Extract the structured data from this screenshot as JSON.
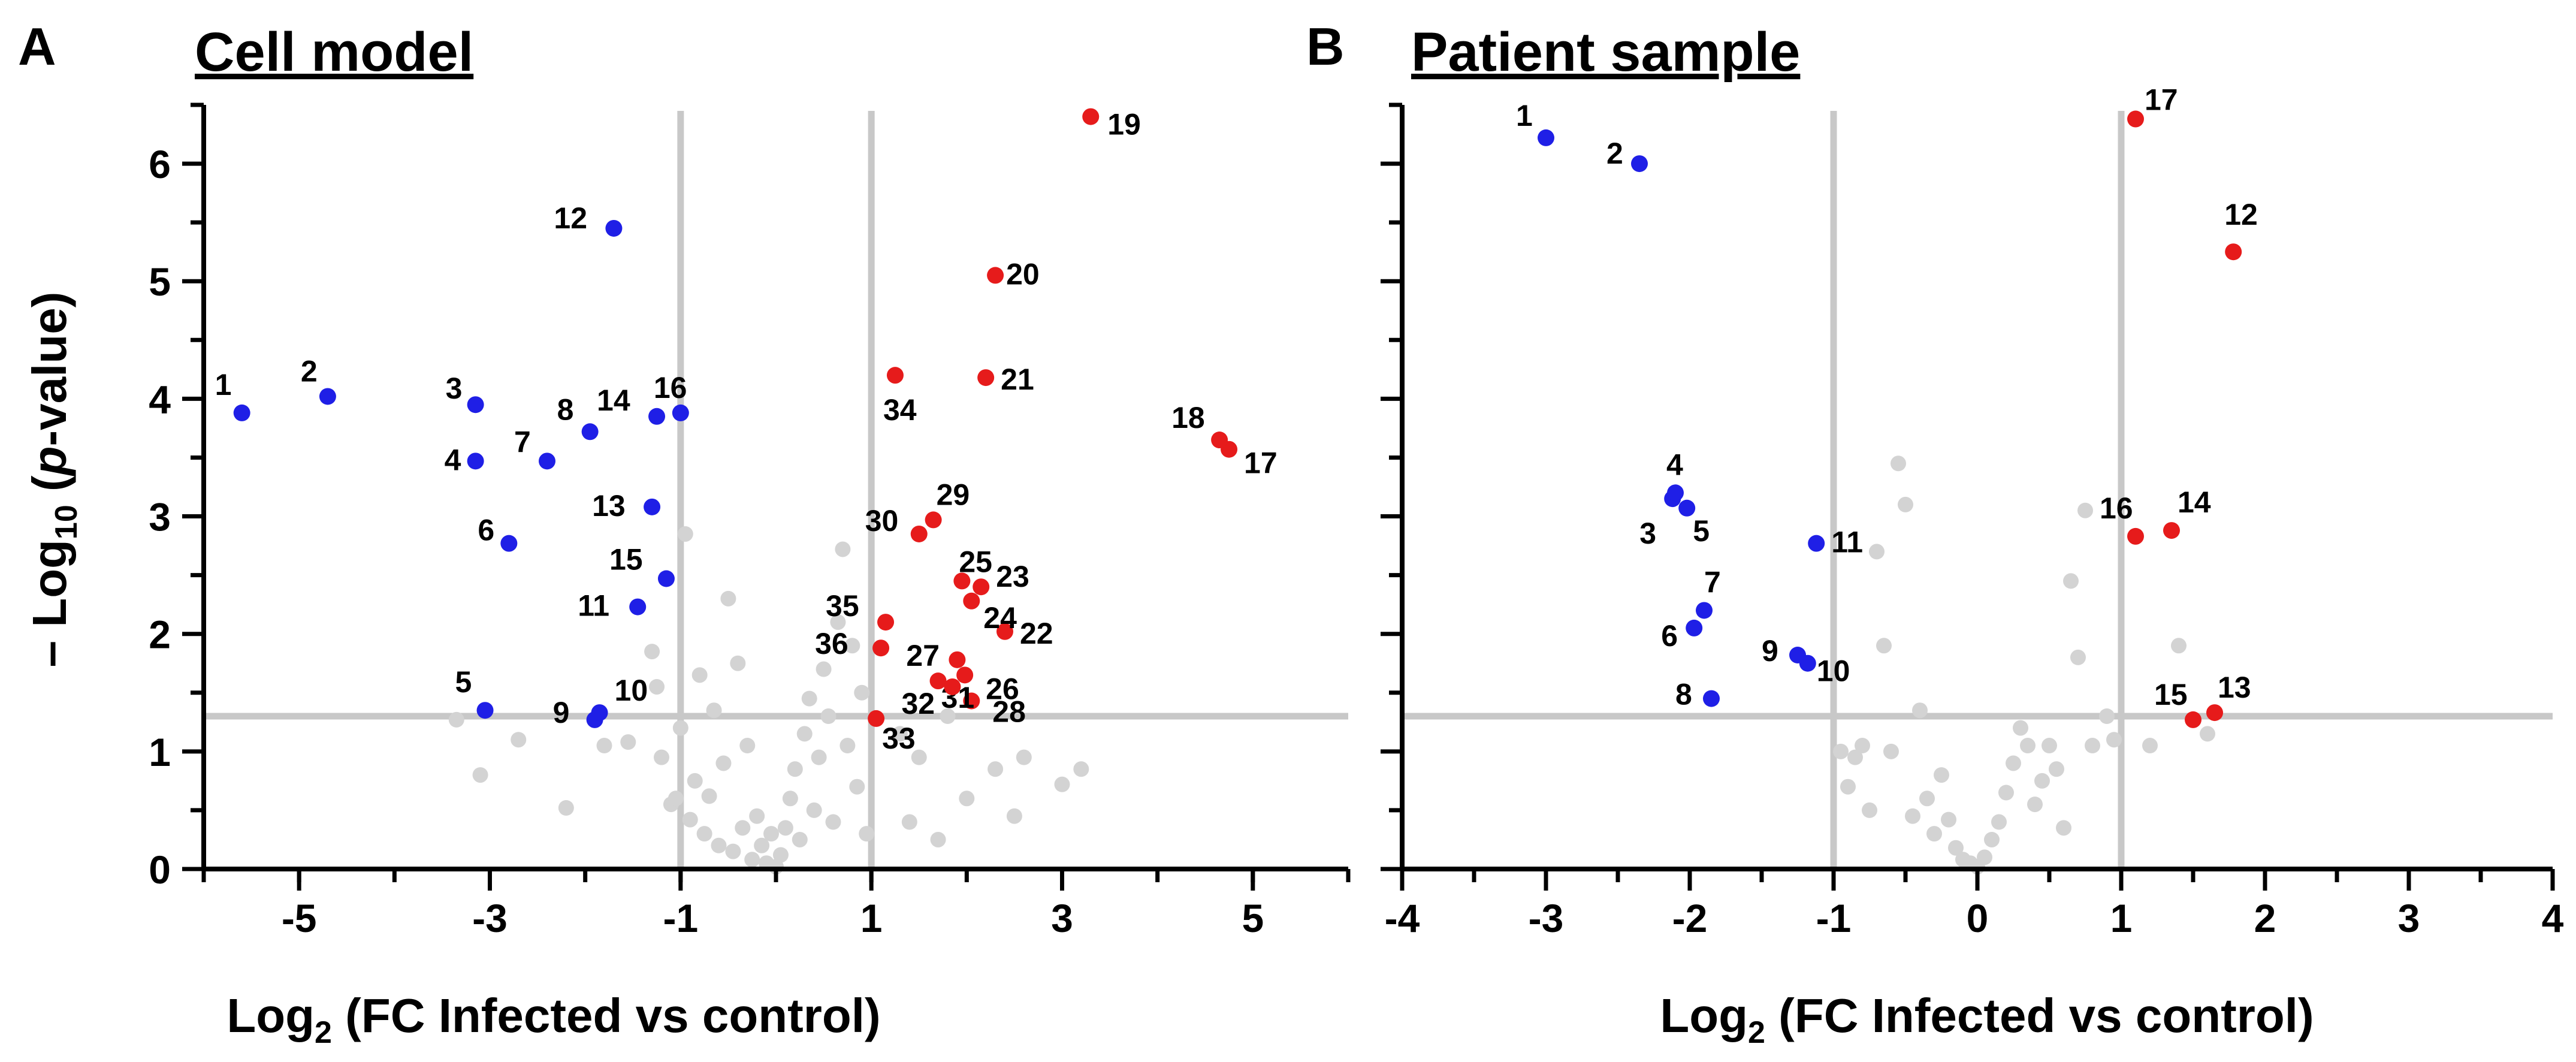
{
  "chart_data": [
    {
      "type": "scatter",
      "panel_letter": "A",
      "title": "Cell model",
      "xlabel_main": "Log",
      "xlabel_sub": "2",
      "xlabel_rest": " (FC Infected vs control)",
      "ylabel_main": "– Log",
      "ylabel_sub": "10",
      "ylabel_rest_before": " (",
      "ylabel_italic": "p",
      "ylabel_rest_after": "-value)",
      "xlim": [
        -6,
        6
      ],
      "ylim": [
        0,
        6.5
      ],
      "xticks": [
        -5,
        -3,
        -1,
        1,
        3,
        5
      ],
      "xticks_minor": [
        -6,
        -5,
        -4,
        -3,
        -2,
        -1,
        0,
        1,
        2,
        3,
        4,
        5,
        6
      ],
      "yticks": [
        0,
        1,
        2,
        3,
        4,
        5,
        6
      ],
      "yticks_minor": [
        0.5,
        1.5,
        2.5,
        3.5,
        4.5,
        5.5,
        6.5
      ],
      "vlines": [
        -1,
        1
      ],
      "hline": 1.3,
      "colors": {
        "down": "#1f1fe6",
        "up": "#e61b1b",
        "ns": "#d3d3d3",
        "threshold": "#c8c8c8"
      },
      "down": [
        {
          "label": "1",
          "x": -5.6,
          "y": 3.88
        },
        {
          "label": "2",
          "x": -4.7,
          "y": 4.02
        },
        {
          "label": "3",
          "x": -3.15,
          "y": 3.95
        },
        {
          "label": "4",
          "x": -3.15,
          "y": 3.47
        },
        {
          "label": "5",
          "x": -3.05,
          "y": 1.35
        },
        {
          "label": "6",
          "x": -2.8,
          "y": 2.77
        },
        {
          "label": "7",
          "x": -2.4,
          "y": 3.47
        },
        {
          "label": "8",
          "x": -1.95,
          "y": 3.72
        },
        {
          "label": "9",
          "x": -1.9,
          "y": 1.27
        },
        {
          "label": "10",
          "x": -1.85,
          "y": 1.33
        },
        {
          "label": "11",
          "x": -1.45,
          "y": 2.23
        },
        {
          "label": "12",
          "x": -1.7,
          "y": 5.45
        },
        {
          "label": "13",
          "x": -1.3,
          "y": 3.08
        },
        {
          "label": "14",
          "x": -1.25,
          "y": 3.85
        },
        {
          "label": "15",
          "x": -1.15,
          "y": 2.47
        },
        {
          "label": "16",
          "x": -1.0,
          "y": 3.88
        }
      ],
      "up": [
        {
          "label": "17",
          "x": 4.75,
          "y": 3.57
        },
        {
          "label": "18",
          "x": 4.65,
          "y": 3.65
        },
        {
          "label": "19",
          "x": 3.3,
          "y": 6.4
        },
        {
          "label": "20",
          "x": 2.3,
          "y": 5.05
        },
        {
          "label": "21",
          "x": 2.2,
          "y": 4.18
        },
        {
          "label": "22",
          "x": 2.4,
          "y": 2.02
        },
        {
          "label": "23",
          "x": 2.15,
          "y": 2.4
        },
        {
          "label": "24",
          "x": 2.05,
          "y": 2.28
        },
        {
          "label": "25",
          "x": 1.95,
          "y": 2.45
        },
        {
          "label": "26",
          "x": 1.98,
          "y": 1.65
        },
        {
          "label": "27",
          "x": 1.9,
          "y": 1.78
        },
        {
          "label": "28",
          "x": 2.05,
          "y": 1.43
        },
        {
          "label": "29",
          "x": 1.65,
          "y": 2.97
        },
        {
          "label": "30",
          "x": 1.5,
          "y": 2.85
        },
        {
          "label": "31",
          "x": 1.7,
          "y": 1.6
        },
        {
          "label": "32",
          "x": 1.85,
          "y": 1.55
        },
        {
          "label": "33",
          "x": 1.05,
          "y": 1.28
        },
        {
          "label": "34",
          "x": 1.25,
          "y": 4.2
        },
        {
          "label": "35",
          "x": 1.15,
          "y": 2.1
        },
        {
          "label": "36",
          "x": 1.1,
          "y": 1.88
        }
      ],
      "ns": [
        [
          -3.35,
          1.27
        ],
        [
          -3.1,
          0.8
        ],
        [
          -2.7,
          1.1
        ],
        [
          -2.2,
          0.52
        ],
        [
          -1.8,
          1.05
        ],
        [
          -1.55,
          1.08
        ],
        [
          -1.3,
          1.85
        ],
        [
          -1.25,
          1.55
        ],
        [
          -1.2,
          0.95
        ],
        [
          -1.1,
          0.55
        ],
        [
          -1.05,
          0.6
        ],
        [
          -1.0,
          1.2
        ],
        [
          -0.95,
          2.85
        ],
        [
          -0.9,
          0.42
        ],
        [
          -0.85,
          0.75
        ],
        [
          -0.8,
          1.65
        ],
        [
          -0.75,
          0.3
        ],
        [
          -0.7,
          0.62
        ],
        [
          -0.65,
          1.35
        ],
        [
          -0.6,
          0.2
        ],
        [
          -0.55,
          0.9
        ],
        [
          -0.5,
          2.3
        ],
        [
          -0.45,
          0.15
        ],
        [
          -0.4,
          1.75
        ],
        [
          -0.35,
          0.35
        ],
        [
          -0.3,
          1.05
        ],
        [
          -0.25,
          0.08
        ],
        [
          -0.2,
          0.45
        ],
        [
          -0.15,
          0.2
        ],
        [
          -0.1,
          0.05
        ],
        [
          -0.05,
          0.3
        ],
        [
          0.0,
          0.02
        ],
        [
          0.05,
          0.12
        ],
        [
          0.1,
          0.35
        ],
        [
          0.15,
          0.6
        ],
        [
          0.2,
          0.85
        ],
        [
          0.25,
          0.25
        ],
        [
          0.3,
          1.15
        ],
        [
          0.35,
          1.45
        ],
        [
          0.4,
          0.5
        ],
        [
          0.45,
          0.95
        ],
        [
          0.5,
          1.7
        ],
        [
          0.55,
          1.3
        ],
        [
          0.6,
          0.4
        ],
        [
          0.65,
          2.1
        ],
        [
          0.7,
          2.72
        ],
        [
          0.75,
          1.05
        ],
        [
          0.8,
          1.9
        ],
        [
          0.85,
          0.7
        ],
        [
          0.9,
          1.5
        ],
        [
          0.95,
          0.3
        ],
        [
          1.3,
          1.15
        ],
        [
          1.4,
          0.4
        ],
        [
          1.5,
          0.95
        ],
        [
          1.7,
          0.25
        ],
        [
          1.8,
          1.3
        ],
        [
          2.0,
          0.6
        ],
        [
          2.3,
          0.85
        ],
        [
          2.5,
          0.45
        ],
        [
          2.6,
          0.95
        ],
        [
          3.0,
          0.72
        ],
        [
          3.2,
          0.85
        ]
      ]
    },
    {
      "type": "scatter",
      "panel_letter": "B",
      "title": "Patient sample",
      "xlabel_main": "Log",
      "xlabel_sub": "2",
      "xlabel_rest": " (FC Infected vs control)",
      "xlim": [
        -4,
        4
      ],
      "ylim": [
        0,
        6.5
      ],
      "xticks": [
        -4,
        -3,
        -2,
        -1,
        0,
        1,
        2,
        3,
        4
      ],
      "xticks_minor": [
        -3.5,
        -2.5,
        -1.5,
        -0.5,
        0.5,
        1.5,
        2.5,
        3.5
      ],
      "yticks": [
        0,
        1,
        2,
        3,
        4,
        5,
        6
      ],
      "yticks_minor": [
        0.5,
        1.5,
        2.5,
        3.5,
        4.5,
        5.5,
        6.5
      ],
      "vlines": [
        -1,
        1
      ],
      "hline": 1.3,
      "colors": {
        "down": "#1f1fe6",
        "up": "#e61b1b",
        "ns": "#d3d3d3",
        "threshold": "#c8c8c8"
      },
      "down": [
        {
          "label": "1",
          "x": -3.0,
          "y": 6.22
        },
        {
          "label": "2",
          "x": -2.35,
          "y": 6.0
        },
        {
          "label": "3",
          "x": -2.12,
          "y": 3.15
        },
        {
          "label": "4",
          "x": -2.1,
          "y": 3.2
        },
        {
          "label": "5",
          "x": -2.02,
          "y": 3.07
        },
        {
          "label": "6",
          "x": -1.97,
          "y": 2.05
        },
        {
          "label": "7",
          "x": -1.9,
          "y": 2.2
        },
        {
          "label": "8",
          "x": -1.85,
          "y": 1.45
        },
        {
          "label": "9",
          "x": -1.25,
          "y": 1.82
        },
        {
          "label": "10",
          "x": -1.18,
          "y": 1.75
        },
        {
          "label": "11",
          "x": -1.12,
          "y": 2.77
        }
      ],
      "up": [
        {
          "label": "12",
          "x": 1.78,
          "y": 5.25
        },
        {
          "label": "13",
          "x": 1.65,
          "y": 1.33
        },
        {
          "label": "14",
          "x": 1.35,
          "y": 2.88
        },
        {
          "label": "15",
          "x": 1.5,
          "y": 1.27
        },
        {
          "label": "16",
          "x": 1.1,
          "y": 2.83
        },
        {
          "label": "17",
          "x": 1.1,
          "y": 6.38
        }
      ],
      "ns": [
        [
          -0.95,
          1.0
        ],
        [
          -0.9,
          0.7
        ],
        [
          -0.85,
          0.95
        ],
        [
          -0.8,
          1.05
        ],
        [
          -0.75,
          0.5
        ],
        [
          -0.7,
          2.7
        ],
        [
          -0.65,
          1.9
        ],
        [
          -0.6,
          1.0
        ],
        [
          -0.55,
          3.45
        ],
        [
          -0.5,
          3.1
        ],
        [
          -0.45,
          0.45
        ],
        [
          -0.4,
          1.35
        ],
        [
          -0.35,
          0.6
        ],
        [
          -0.3,
          0.3
        ],
        [
          -0.25,
          0.8
        ],
        [
          -0.2,
          0.42
        ],
        [
          -0.15,
          0.18
        ],
        [
          -0.1,
          0.08
        ],
        [
          -0.05,
          0.05
        ],
        [
          0.0,
          0.02
        ],
        [
          0.05,
          0.1
        ],
        [
          0.1,
          0.25
        ],
        [
          0.15,
          0.4
        ],
        [
          0.2,
          0.65
        ],
        [
          0.25,
          0.9
        ],
        [
          0.3,
          1.2
        ],
        [
          0.35,
          1.05
        ],
        [
          0.4,
          0.55
        ],
        [
          0.45,
          0.75
        ],
        [
          0.5,
          1.05
        ],
        [
          0.55,
          0.85
        ],
        [
          0.6,
          0.35
        ],
        [
          0.65,
          2.45
        ],
        [
          0.7,
          1.8
        ],
        [
          0.75,
          3.05
        ],
        [
          0.8,
          1.05
        ],
        [
          0.9,
          1.3
        ],
        [
          0.95,
          1.1
        ],
        [
          1.2,
          1.05
        ],
        [
          1.4,
          1.9
        ],
        [
          1.6,
          1.15
        ]
      ]
    }
  ]
}
